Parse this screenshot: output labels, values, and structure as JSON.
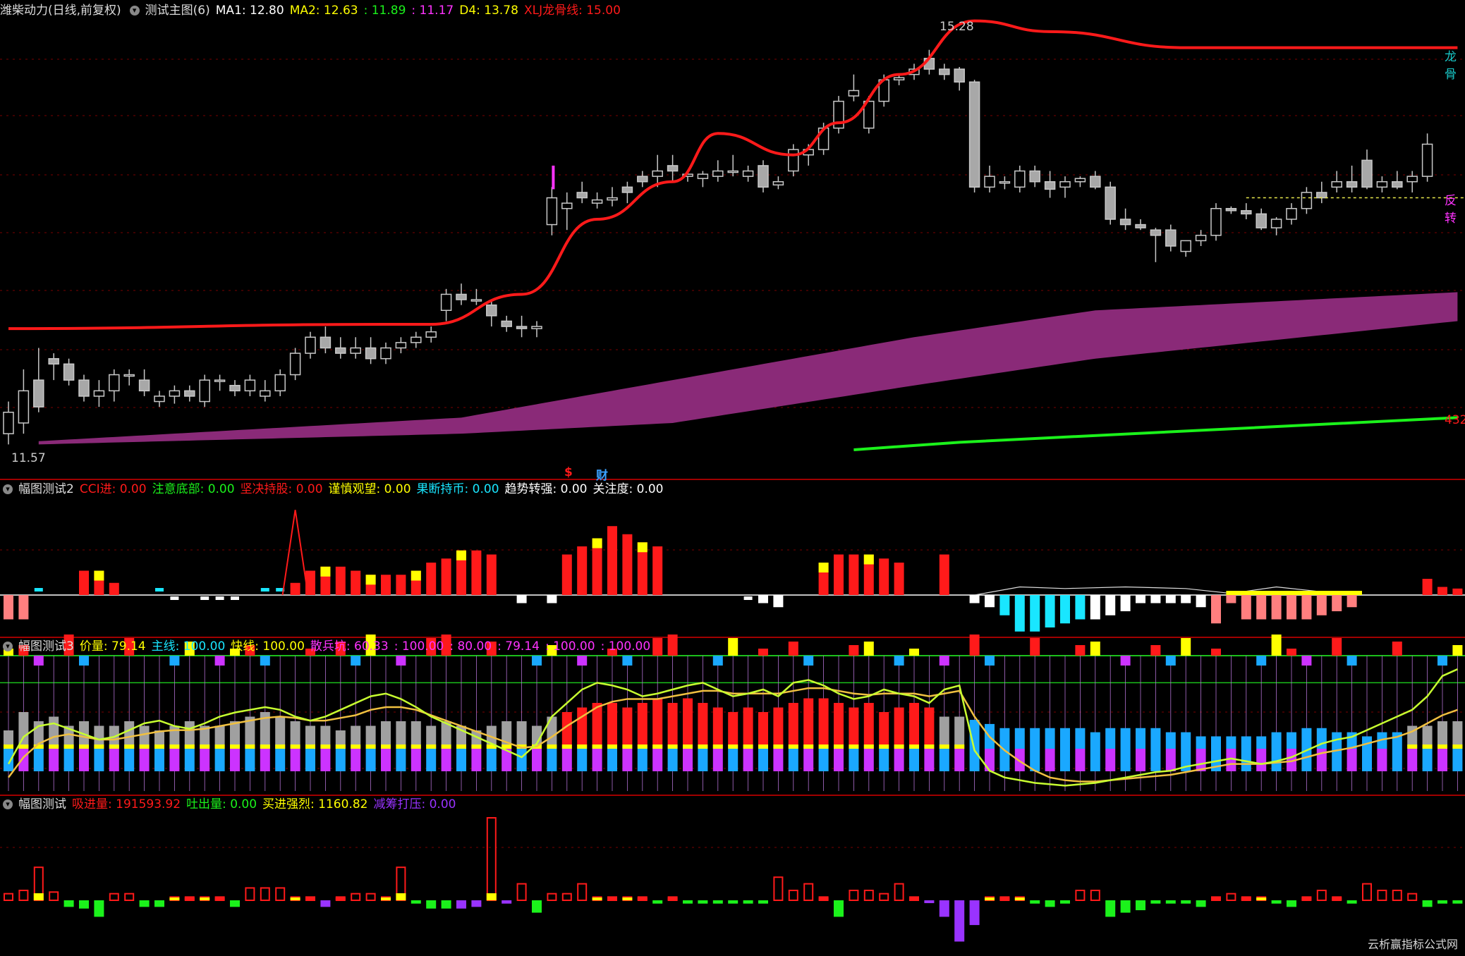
{
  "colors": {
    "bg": "#000000",
    "grid": "#7a0000",
    "sep": "#a00000",
    "red": "#ff1a1a",
    "magenta": "#ff33ff",
    "purple": "#8a2a78",
    "green": "#1bf21b",
    "yellow": "#ffff00",
    "cyan": "#19e6ff",
    "white": "#ffffff",
    "gray": "#9a9a9a",
    "pink": "#ff7f7f",
    "violet": "#9933ff"
  },
  "main": {
    "stock": "潍柴动力(日线,前复权)",
    "indicator": "测试主图(6)",
    "items": [
      {
        "label": "MA1: 12.80",
        "color": "#ffffff"
      },
      {
        "label": "MA2: 12.63",
        "color": "#ffff00"
      },
      {
        "label": ": 11.89",
        "color": "#1bf21b"
      },
      {
        "label": ": 11.17",
        "color": "#ff33ff"
      },
      {
        "label": "D4: 13.78",
        "color": "#ffff00"
      },
      {
        "label": "XLJ龙骨线: 15.00",
        "color": "#ff1a1a"
      }
    ],
    "high_label": "15.28",
    "low_label": "11.57",
    "right_label_red": "龙骨",
    "right_label_mag": "反转",
    "right_label_num": "432",
    "marker_s": "$",
    "marker_cai": "财"
  },
  "panel2": {
    "title": "幅图测试2",
    "items": [
      {
        "label": "CCI进: 0.00",
        "color": "#ff1a1a"
      },
      {
        "label": "注意底部: 0.00",
        "color": "#1bf21b"
      },
      {
        "label": "坚决持股: 0.00",
        "color": "#ff1a1a"
      },
      {
        "label": "谨慎观望: 0.00",
        "color": "#ffff00"
      },
      {
        "label": "果断持币: 0.00",
        "color": "#19e6ff"
      },
      {
        "label": "趋势转强: 0.00",
        "color": "#ffffff"
      },
      {
        "label": "关注度: 0.00",
        "color": "#ffffff"
      }
    ]
  },
  "panel3": {
    "title": "幅图测试3",
    "items": [
      {
        "label": "价量: 79.14",
        "color": "#ffff00"
      },
      {
        "label": "主线: 100.00",
        "color": "#19e6ff"
      },
      {
        "label": "快线: 100.00",
        "color": "#ffff00"
      },
      {
        "label": "散兵坑: 60.33",
        "color": "#ff33ff"
      },
      {
        "label": ": 100.00",
        "color": "#ff33ff"
      },
      {
        "label": ": 80.00",
        "color": "#ff33ff"
      },
      {
        "label": ": 79.14",
        "color": "#ff33ff"
      },
      {
        "label": ": 100.00",
        "color": "#ff33ff"
      },
      {
        "label": ": 100.00",
        "color": "#ff33ff"
      }
    ]
  },
  "panel4": {
    "title": "幅图测试",
    "items": [
      {
        "label": "吸进量: 191593.92",
        "color": "#ff1a1a"
      },
      {
        "label": "吐出量: 0.00",
        "color": "#1bf21b"
      },
      {
        "label": "买进强烈: 1160.82",
        "color": "#ffff00"
      },
      {
        "label": "减筹打压: 0.00",
        "color": "#9933ff"
      }
    ]
  },
  "watermark": "云析赢指标公式网",
  "chart_data": [
    {
      "type": "candlestick",
      "name": "main",
      "ylim": [
        11.3,
        15.6
      ],
      "candles": [
        [
          11.7,
          12.0,
          11.6,
          11.9
        ],
        [
          11.8,
          12.3,
          11.7,
          12.1
        ],
        [
          12.2,
          12.5,
          11.9,
          11.95
        ],
        [
          12.4,
          12.45,
          12.2,
          12.35
        ],
        [
          12.35,
          12.4,
          12.15,
          12.2
        ],
        [
          12.2,
          12.25,
          12.0,
          12.05
        ],
        [
          12.05,
          12.2,
          11.95,
          12.1
        ],
        [
          12.1,
          12.3,
          12.0,
          12.25
        ],
        [
          12.25,
          12.3,
          12.15,
          12.25
        ],
        [
          12.2,
          12.3,
          12.05,
          12.1
        ],
        [
          12.0,
          12.1,
          11.95,
          12.05
        ],
        [
          12.05,
          12.15,
          11.98,
          12.1
        ],
        [
          12.1,
          12.15,
          12.0,
          12.05
        ],
        [
          12.0,
          12.25,
          11.95,
          12.2
        ],
        [
          12.2,
          12.25,
          12.1,
          12.2
        ],
        [
          12.15,
          12.2,
          12.05,
          12.1
        ],
        [
          12.1,
          12.25,
          12.05,
          12.2
        ],
        [
          12.05,
          12.2,
          12.0,
          12.1
        ],
        [
          12.1,
          12.3,
          12.05,
          12.25
        ],
        [
          12.25,
          12.5,
          12.2,
          12.45
        ],
        [
          12.45,
          12.65,
          12.4,
          12.6
        ],
        [
          12.6,
          12.7,
          12.45,
          12.5
        ],
        [
          12.5,
          12.6,
          12.4,
          12.45
        ],
        [
          12.45,
          12.6,
          12.4,
          12.5
        ],
        [
          12.5,
          12.6,
          12.35,
          12.4
        ],
        [
          12.4,
          12.55,
          12.35,
          12.5
        ],
        [
          12.5,
          12.6,
          12.45,
          12.55
        ],
        [
          12.55,
          12.65,
          12.5,
          12.6
        ],
        [
          12.6,
          12.7,
          12.55,
          12.65
        ],
        [
          12.85,
          13.05,
          12.75,
          13.0
        ],
        [
          13.0,
          13.1,
          12.9,
          12.95
        ],
        [
          12.95,
          13.05,
          12.9,
          12.95
        ],
        [
          12.9,
          12.95,
          12.7,
          12.8
        ],
        [
          12.75,
          12.8,
          12.65,
          12.7
        ],
        [
          12.7,
          12.8,
          12.6,
          12.68
        ],
        [
          12.68,
          12.75,
          12.6,
          12.7
        ],
        [
          13.65,
          14.0,
          13.55,
          13.9
        ],
        [
          13.8,
          13.95,
          13.6,
          13.85
        ],
        [
          13.95,
          14.05,
          13.85,
          13.9
        ],
        [
          13.85,
          13.95,
          13.8,
          13.88
        ],
        [
          13.88,
          14.0,
          13.82,
          13.9
        ],
        [
          14.0,
          14.05,
          13.85,
          13.95
        ],
        [
          14.1,
          14.15,
          14.0,
          14.05
        ],
        [
          14.1,
          14.3,
          14.0,
          14.15
        ],
        [
          14.2,
          14.3,
          14.05,
          14.15
        ],
        [
          14.1,
          14.15,
          14.05,
          14.12
        ],
        [
          14.08,
          14.15,
          14.0,
          14.12
        ],
        [
          14.1,
          14.25,
          14.05,
          14.15
        ],
        [
          14.15,
          14.3,
          14.1,
          14.15
        ],
        [
          14.1,
          14.2,
          14.05,
          14.15
        ],
        [
          14.2,
          14.25,
          13.95,
          14.0
        ],
        [
          14.02,
          14.1,
          13.98,
          14.05
        ],
        [
          14.15,
          14.4,
          14.1,
          14.35
        ],
        [
          14.3,
          14.4,
          14.2,
          14.35
        ],
        [
          14.35,
          14.6,
          14.3,
          14.55
        ],
        [
          14.55,
          14.85,
          14.5,
          14.8
        ],
        [
          14.85,
          15.05,
          14.8,
          14.9
        ],
        [
          14.55,
          14.85,
          14.5,
          14.8
        ],
        [
          14.8,
          15.05,
          14.75,
          15.0
        ],
        [
          15.0,
          15.05,
          14.95,
          15.02
        ],
        [
          15.05,
          15.15,
          15.0,
          15.1
        ],
        [
          15.2,
          15.28,
          15.05,
          15.1
        ],
        [
          15.1,
          15.15,
          15.0,
          15.05
        ],
        [
          15.1,
          15.12,
          14.9,
          14.98
        ],
        [
          14.98,
          15.0,
          13.95,
          14.0
        ],
        [
          14.0,
          14.2,
          13.95,
          14.1
        ],
        [
          14.05,
          14.1,
          13.98,
          14.05
        ],
        [
          14.0,
          14.2,
          13.95,
          14.15
        ],
        [
          14.15,
          14.2,
          14.0,
          14.05
        ],
        [
          14.05,
          14.15,
          13.9,
          13.98
        ],
        [
          14.0,
          14.1,
          13.9,
          14.05
        ],
        [
          14.05,
          14.1,
          14.0,
          14.08
        ],
        [
          14.1,
          14.15,
          13.98,
          14.0
        ],
        [
          14.0,
          14.05,
          13.65,
          13.7
        ],
        [
          13.7,
          13.8,
          13.6,
          13.65
        ],
        [
          13.65,
          13.7,
          13.6,
          13.62
        ],
        [
          13.6,
          13.62,
          13.3,
          13.55
        ],
        [
          13.6,
          13.65,
          13.4,
          13.45
        ],
        [
          13.4,
          13.5,
          13.35,
          13.5
        ],
        [
          13.5,
          13.6,
          13.45,
          13.55
        ],
        [
          13.55,
          13.85,
          13.5,
          13.8
        ],
        [
          13.8,
          13.82,
          13.75,
          13.78
        ],
        [
          13.78,
          13.85,
          13.7,
          13.75
        ],
        [
          13.75,
          13.8,
          13.6,
          13.62
        ],
        [
          13.62,
          13.72,
          13.55,
          13.7
        ],
        [
          13.7,
          13.85,
          13.65,
          13.8
        ],
        [
          13.8,
          14.0,
          13.75,
          13.95
        ],
        [
          13.95,
          14.05,
          13.85,
          13.9
        ],
        [
          14.0,
          14.15,
          13.95,
          14.05
        ],
        [
          14.05,
          14.2,
          13.95,
          14.0
        ],
        [
          14.25,
          14.35,
          13.98,
          14.0
        ],
        [
          14.0,
          14.1,
          13.95,
          14.05
        ],
        [
          14.05,
          14.15,
          13.98,
          14.0
        ],
        [
          14.05,
          14.15,
          13.95,
          14.1
        ],
        [
          14.1,
          14.5,
          14.05,
          14.4
        ]
      ],
      "dragon_line": [
        [
          0,
          12.68
        ],
        [
          25,
          12.72
        ],
        [
          28,
          12.72
        ],
        [
          34,
          13.0
        ],
        [
          39,
          13.7
        ],
        [
          44,
          14.05
        ],
        [
          47,
          14.5
        ],
        [
          52,
          14.3
        ],
        [
          55,
          14.6
        ],
        [
          59,
          15.05
        ],
        [
          64,
          15.55
        ],
        [
          69,
          15.45
        ],
        [
          78,
          15.3
        ],
        [
          96,
          15.3
        ]
      ],
      "ribbon_top": [
        [
          2,
          11.63
        ],
        [
          30,
          11.85
        ],
        [
          44,
          12.2
        ],
        [
          60,
          12.6
        ],
        [
          72,
          12.85
        ],
        [
          96,
          13.02
        ]
      ],
      "ribbon_bottom": [
        [
          2,
          11.6
        ],
        [
          30,
          11.7
        ],
        [
          44,
          11.8
        ],
        [
          60,
          12.15
        ],
        [
          72,
          12.4
        ],
        [
          96,
          12.75
        ]
      ],
      "green_line": [
        [
          56,
          11.55
        ],
        [
          63,
          11.62
        ],
        [
          96,
          11.85
        ]
      ],
      "reversal_line": {
        "from": 82,
        "to": 96,
        "value": 13.9
      }
    },
    {
      "type": "bar",
      "name": "panel2",
      "ylim": [
        -0.5,
        1.2
      ],
      "values": [
        -0.3,
        -0.3,
        0.05,
        0,
        0,
        0.3,
        0.3,
        0.15,
        0,
        0,
        0.05,
        -0.05,
        0,
        -0.05,
        -0.05,
        -0.05,
        0,
        0.05,
        0.05,
        0.15,
        0.3,
        0.35,
        0.35,
        0.3,
        0.25,
        0.25,
        0.25,
        0.3,
        0.4,
        0.45,
        0.55,
        0.55,
        0.5,
        0,
        -0.1,
        0,
        -0.1,
        0.5,
        0.6,
        0.7,
        0.85,
        0.75,
        0.65,
        0.6,
        0,
        0,
        0,
        0,
        0,
        -0.05,
        -0.1,
        -0.15,
        0,
        0,
        0.4,
        0.5,
        0.5,
        0.5,
        0.45,
        0.4,
        0,
        0,
        0.5,
        0,
        -0.1,
        -0.15,
        -0.25,
        -0.45,
        -0.45,
        -0.4,
        -0.35,
        -0.3,
        -0.3,
        -0.25,
        -0.2,
        -0.1,
        -0.1,
        -0.1,
        -0.1,
        -0.15,
        -0.35,
        -0.1,
        -0.3,
        -0.3,
        -0.3,
        -0.3,
        -0.3,
        -0.25,
        -0.2,
        -0.15,
        0,
        0,
        0,
        0,
        0.2,
        0.1,
        0.08,
        0.06
      ],
      "spike_index": 19,
      "spike_value": 1.05
    },
    {
      "type": "bar+line",
      "name": "panel3",
      "ylim": [
        0,
        100
      ],
      "bars": [
        40,
        60,
        50,
        55,
        45,
        50,
        45,
        45,
        50,
        45,
        40,
        45,
        50,
        45,
        45,
        50,
        55,
        60,
        55,
        50,
        45,
        45,
        40,
        45,
        45,
        50,
        50,
        50,
        45,
        50,
        45,
        40,
        45,
        50,
        50,
        45,
        55,
        60,
        65,
        70,
        70,
        65,
        70,
        75,
        70,
        75,
        70,
        65,
        60,
        65,
        60,
        65,
        70,
        75,
        75,
        70,
        65,
        70,
        60,
        65,
        70,
        65,
        55,
        55,
        55,
        50,
        45,
        45,
        45,
        45,
        45,
        45,
        40,
        45,
        45,
        45,
        45,
        40,
        40,
        35,
        35,
        35,
        35,
        35,
        40,
        40,
        45,
        45,
        40,
        40,
        35,
        40,
        40,
        45,
        45,
        50,
        50
      ],
      "fast_line": [
        20,
        40,
        48,
        50,
        46,
        42,
        38,
        40,
        45,
        50,
        52,
        48,
        46,
        50,
        55,
        58,
        60,
        62,
        60,
        55,
        52,
        55,
        60,
        65,
        70,
        72,
        68,
        62,
        55,
        50,
        45,
        40,
        35,
        30,
        25,
        35,
        55,
        65,
        75,
        80,
        78,
        75,
        70,
        72,
        75,
        78,
        80,
        75,
        70,
        72,
        75,
        70,
        80,
        82,
        78,
        72,
        68,
        70,
        75,
        72,
        70,
        65,
        75,
        78,
        30,
        15,
        10,
        8,
        6,
        5,
        4,
        5,
        6,
        8,
        10,
        12,
        14,
        15,
        18,
        20,
        22,
        24,
        22,
        20,
        22,
        25,
        30,
        35,
        38,
        40,
        45,
        50,
        55,
        60,
        70,
        85,
        90
      ],
      "slow_line": [
        10,
        25,
        35,
        40,
        42,
        40,
        38,
        38,
        40,
        42,
        44,
        45,
        45,
        46,
        48,
        50,
        52,
        54,
        55,
        54,
        52,
        52,
        54,
        56,
        60,
        62,
        62,
        60,
        56,
        52,
        48,
        44,
        40,
        36,
        32,
        33,
        40,
        48,
        55,
        62,
        66,
        68,
        68,
        68,
        70,
        72,
        74,
        74,
        72,
        72,
        72,
        72,
        74,
        76,
        76,
        74,
        72,
        71,
        72,
        72,
        72,
        70,
        72,
        74,
        55,
        40,
        30,
        22,
        15,
        10,
        8,
        7,
        7,
        8,
        9,
        10,
        11,
        12,
        14,
        16,
        18,
        20,
        20,
        20,
        21,
        22,
        25,
        28,
        30,
        32,
        35,
        38,
        40,
        44,
        50,
        56,
        60
      ],
      "level_lines": [
        100,
        80
      ]
    },
    {
      "type": "bar",
      "name": "panel4",
      "ylim": [
        -60,
        100
      ],
      "values": [
        8,
        12,
        40,
        10,
        -8,
        -10,
        -20,
        8,
        8,
        -8,
        -8,
        4,
        4,
        4,
        4,
        -8,
        15,
        15,
        15,
        4,
        4,
        -8,
        4,
        8,
        8,
        4,
        40,
        -4,
        -10,
        -10,
        -10,
        -8,
        100,
        -4,
        20,
        -15,
        8,
        8,
        20,
        4,
        4,
        4,
        4,
        -4,
        4,
        -4,
        -4,
        -4,
        -4,
        -4,
        -4,
        28,
        12,
        20,
        4,
        -20,
        12,
        12,
        8,
        20,
        4,
        0,
        -20,
        -50,
        -30,
        4,
        4,
        4,
        -4,
        -8,
        -4,
        12,
        12,
        -20,
        -15,
        -12,
        -4,
        -4,
        -4,
        -8,
        4,
        8,
        4,
        4,
        -4,
        -8,
        4,
        12,
        4,
        -4,
        20,
        12,
        12,
        8,
        -8,
        -4,
        -4,
        8,
        28
      ]
    }
  ]
}
